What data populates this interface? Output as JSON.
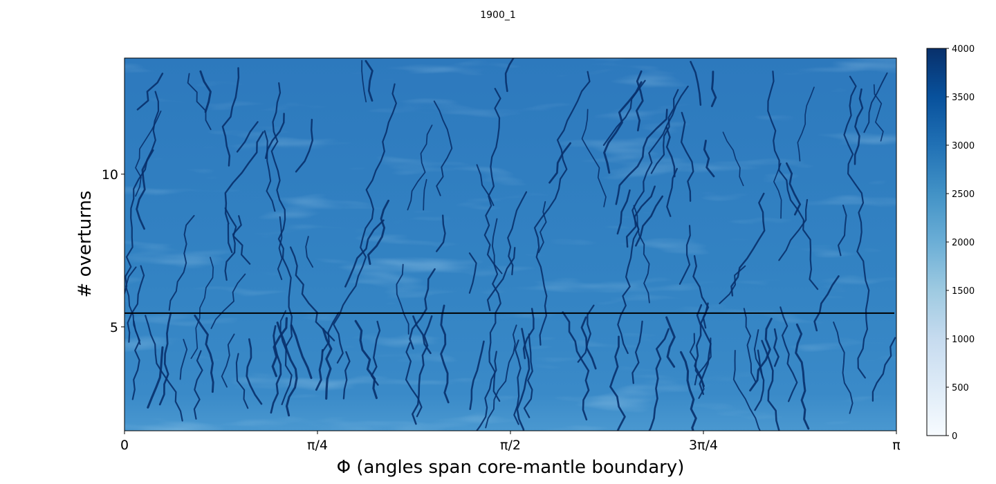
{
  "chart_data": {
    "type": "heatmap",
    "title": "1900_1",
    "xlabel": "Φ (angles span core-mantle boundary)",
    "ylabel": "# overturns",
    "x_ticks": [
      {
        "value": 0,
        "label": "0"
      },
      {
        "value": 0.785398,
        "label": "π/4"
      },
      {
        "value": 1.570796,
        "label": "π/2"
      },
      {
        "value": 2.356194,
        "label": "3π/4"
      },
      {
        "value": 3.141593,
        "label": "π"
      }
    ],
    "y_ticks": [
      {
        "value": 5,
        "label": "5"
      },
      {
        "value": 10,
        "label": "10"
      }
    ],
    "xlim": [
      0,
      3.141593
    ],
    "ylim": [
      1.6,
      13.8
    ],
    "horizontal_line_y": 5.45,
    "colorbar": {
      "colormap": "Blues",
      "range": [
        0,
        4000
      ],
      "ticks": [
        "0",
        "500",
        "1000",
        "1500",
        "2000",
        "2500",
        "3000",
        "3500",
        "4000"
      ]
    },
    "field_dominant_range": [
      2200,
      3000
    ],
    "channels_value": 3800,
    "channel_color": "#08306b",
    "field_color": "#2f7bbf"
  }
}
